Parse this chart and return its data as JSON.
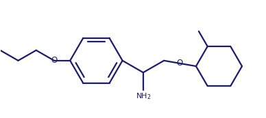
{
  "bg_color": "#ffffff",
  "line_color": "#1a1a6e",
  "text_color": "#1a1a6e",
  "line_width": 1.6,
  "fig_width": 3.88,
  "fig_height": 1.73,
  "dpi": 100
}
